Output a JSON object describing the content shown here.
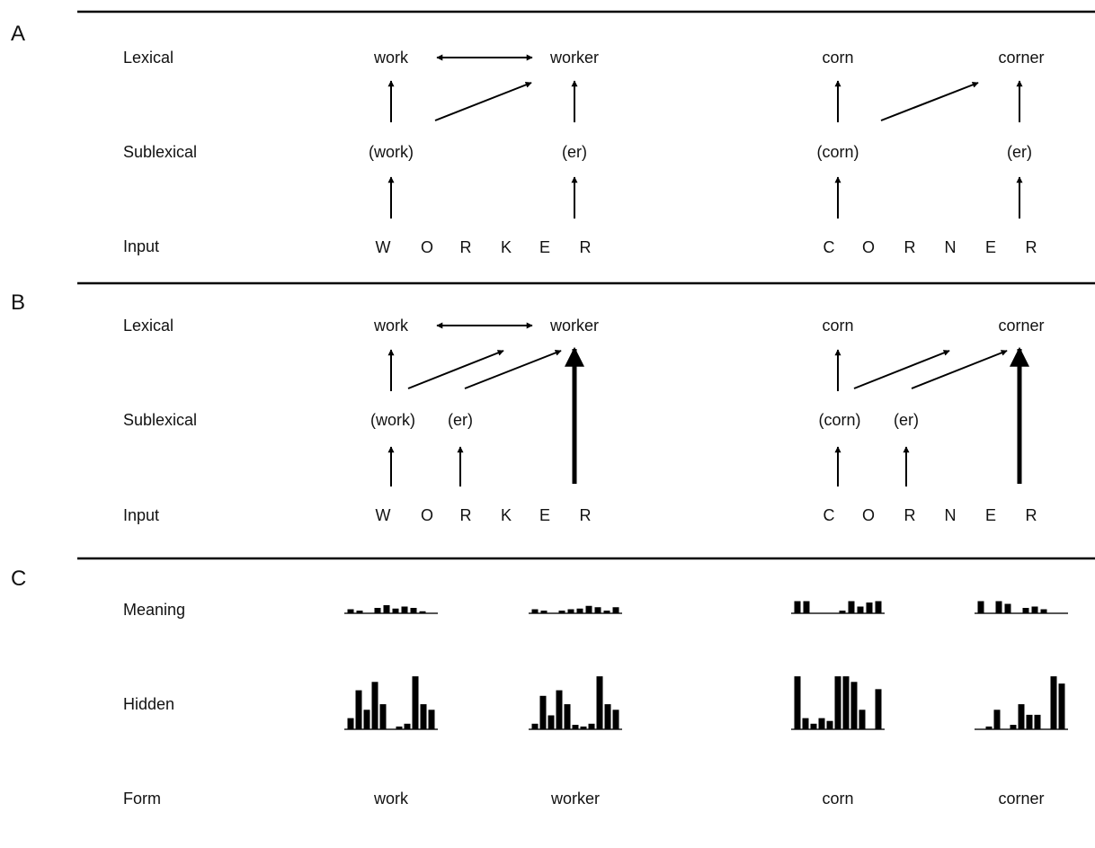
{
  "panels": {
    "a": {
      "letter": "A",
      "levels": {
        "lexical": "Lexical",
        "sublexical": "Sublexical",
        "input": "Input"
      },
      "left": {
        "lex1": "work",
        "lex2": "worker",
        "sub1": "(work)",
        "sub2": "(er)",
        "input": [
          "W",
          "O",
          "R",
          "K",
          "E",
          "R"
        ]
      },
      "right": {
        "lex1": "corn",
        "lex2": "corner",
        "sub1": "(corn)",
        "sub2": "(er)",
        "input": [
          "C",
          "O",
          "R",
          "N",
          "E",
          "R"
        ]
      }
    },
    "b": {
      "letter": "B",
      "levels": {
        "lexical": "Lexical",
        "sublexical": "Sublexical",
        "input": "Input"
      },
      "left": {
        "lex1": "work",
        "lex2": "worker",
        "sub1": "(work)",
        "sub2": "(er)",
        "input": [
          "W",
          "O",
          "R",
          "K",
          "E",
          "R"
        ]
      },
      "right": {
        "lex1": "corn",
        "lex2": "corner",
        "sub1": "(corn)",
        "sub2": "(er)",
        "input": [
          "C",
          "O",
          "R",
          "N",
          "E",
          "R"
        ]
      }
    },
    "c": {
      "letter": "C",
      "levels": {
        "meaning": "Meaning",
        "hidden": "Hidden",
        "form": "Form"
      },
      "words": [
        "work",
        "worker",
        "corn",
        "corner"
      ],
      "meaning_patterns": [
        [
          0.3,
          0.2,
          0,
          0.4,
          0.6,
          0.35,
          0.5,
          0.4,
          0.15,
          0
        ],
        [
          0.3,
          0.2,
          0,
          0.2,
          0.3,
          0.35,
          0.55,
          0.45,
          0.2,
          0.45
        ],
        [
          0.9,
          0.9,
          0,
          0,
          0,
          0.2,
          0.9,
          0.5,
          0.8,
          0.9
        ],
        [
          0.9,
          0,
          0.9,
          0.7,
          0,
          0.4,
          0.5,
          0.3,
          0,
          0
        ]
      ],
      "hidden_patterns": [
        [
          0.2,
          0.7,
          0.35,
          0.85,
          0.45,
          0,
          0.05,
          0.1,
          0.95,
          0.45,
          0.35
        ],
        [
          0.1,
          0.6,
          0.25,
          0.7,
          0.45,
          0.08,
          0.05,
          0.1,
          0.95,
          0.45,
          0.35
        ],
        [
          0.95,
          0.2,
          0.1,
          0.2,
          0.15,
          0.95,
          0.95,
          0.85,
          0.35,
          0,
          0.72
        ],
        [
          0,
          0.05,
          0.35,
          0,
          0.08,
          0.45,
          0.26,
          0.26,
          0,
          0.95,
          0.82
        ]
      ]
    }
  }
}
